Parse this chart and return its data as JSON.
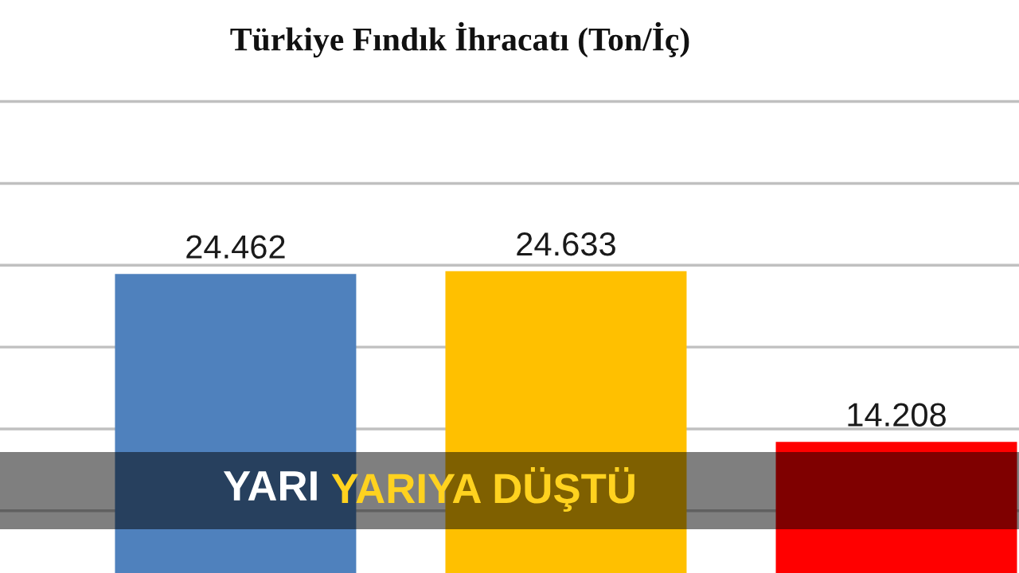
{
  "chart_data": {
    "type": "bar",
    "title": "Türkiye Fındık İhracatı (Ton/İç)",
    "categories": [
      null,
      null,
      null
    ],
    "values": [
      24462,
      24633,
      14208
    ],
    "colors": [
      "#4f81bd",
      "#ffc000",
      "#ff0000"
    ],
    "ylim": [
      6200,
      41200
    ],
    "yticks": [
      {
        "value": 10000,
        "label": null
      },
      {
        "value": 15000,
        "label": null
      },
      {
        "value": 20000,
        "label": null
      },
      {
        "value": 25000,
        "label": null
      },
      {
        "value": 30000,
        "label": null
      },
      {
        "value": 35000,
        "label": null
      }
    ],
    "grid": "y",
    "data_labels": true,
    "value_labels": [
      "24.462",
      "24.633",
      "14.208"
    ],
    "annotations": [
      "YARI YARIYA DÜŞTÜ"
    ]
  }
}
